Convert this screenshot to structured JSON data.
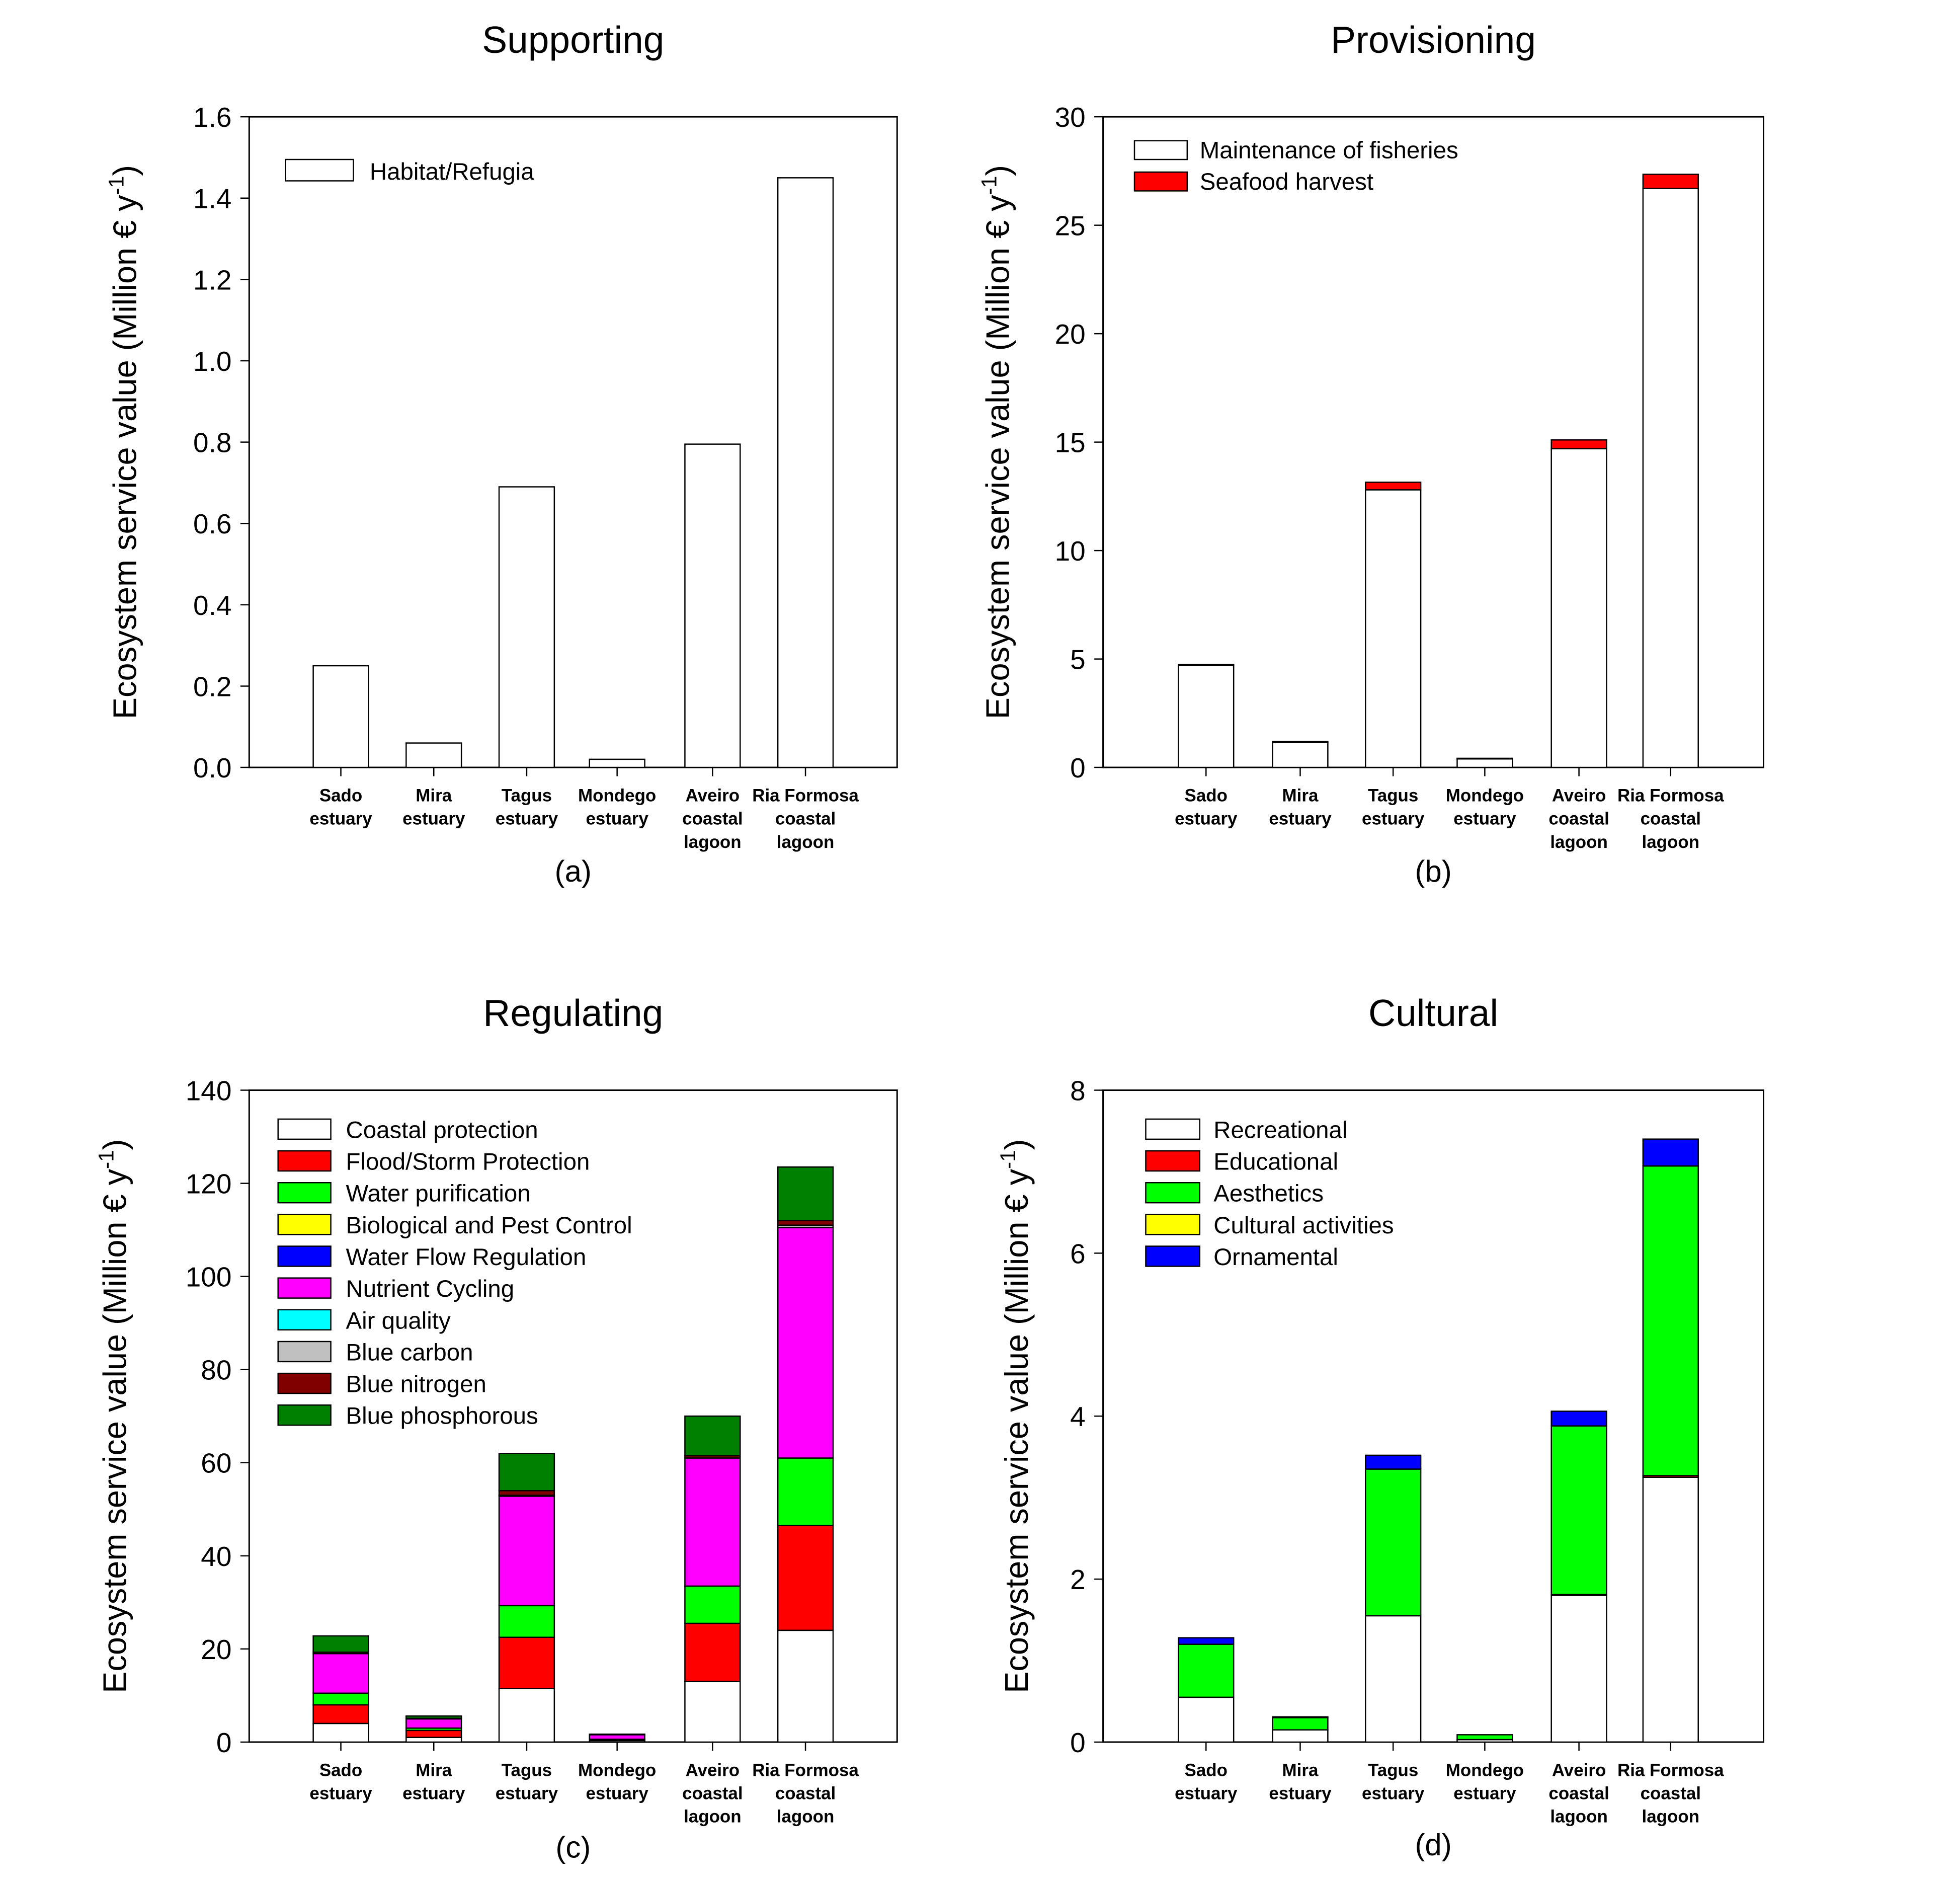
{
  "chart_data": [
    {
      "type": "bar",
      "stacked": true,
      "title": "Supporting",
      "panel_label": "(a)",
      "ylabel": {
        "prefix": "Ecosystem service value (Million € y",
        "sup": "-1",
        "suffix": ")"
      },
      "ylim": [
        0,
        1.6
      ],
      "yticks": [
        "0.0",
        "0.2",
        "0.4",
        "0.6",
        "0.8",
        "1.0",
        "1.2",
        "1.4",
        "1.6"
      ],
      "categories": [
        [
          "Sado",
          "estuary"
        ],
        [
          "Mira",
          "estuary"
        ],
        [
          "Tagus",
          "estuary"
        ],
        [
          "Mondego",
          "estuary"
        ],
        [
          "Aveiro",
          "coastal",
          "lagoon"
        ],
        [
          "Ria Formosa",
          "coastal",
          "lagoon"
        ]
      ],
      "legend_position": "top-left",
      "series": [
        {
          "name": "Habitat/Refugia",
          "color": "#ffffff",
          "values": [
            0.25,
            0.06,
            0.69,
            0.02,
            0.795,
            1.45
          ]
        }
      ]
    },
    {
      "type": "bar",
      "stacked": true,
      "title": "Provisioning",
      "panel_label": "(b)",
      "ylabel": {
        "prefix": "Ecosystem service value (Million € y",
        "sup": "-1",
        "suffix": ")"
      },
      "ylim": [
        0,
        30
      ],
      "yticks": [
        "0",
        "5",
        "10",
        "15",
        "20",
        "25",
        "30"
      ],
      "categories": [
        [
          "Sado",
          "estuary"
        ],
        [
          "Mira",
          "estuary"
        ],
        [
          "Tagus",
          "estuary"
        ],
        [
          "Mondego",
          "estuary"
        ],
        [
          "Aveiro",
          "coastal",
          "lagoon"
        ],
        [
          "Ria Formosa",
          "coastal",
          "lagoon"
        ]
      ],
      "legend_position": "top-left",
      "series": [
        {
          "name": "Maintenance of fisheries",
          "color": "#ffffff",
          "values": [
            4.7,
            1.15,
            12.8,
            0.4,
            14.7,
            26.7
          ]
        },
        {
          "name": "Seafood harvest",
          "color": "#ff0000",
          "values": [
            0.05,
            0.05,
            0.35,
            0.02,
            0.4,
            0.65
          ]
        }
      ]
    },
    {
      "type": "bar",
      "stacked": true,
      "title": "Regulating",
      "panel_label": "(c)",
      "ylabel": {
        "prefix": "Ecosystem service value (Million € y",
        "sup": "-1",
        "suffix": ")"
      },
      "ylim": [
        0,
        140
      ],
      "yticks": [
        "0",
        "20",
        "40",
        "60",
        "80",
        "100",
        "120",
        "140"
      ],
      "categories": [
        [
          "Sado",
          "estuary"
        ],
        [
          "Mira",
          "estuary"
        ],
        [
          "Tagus",
          "estuary"
        ],
        [
          "Mondego",
          "estuary"
        ],
        [
          "Aveiro",
          "coastal",
          "lagoon"
        ],
        [
          "Ria Formosa",
          "coastal",
          "lagoon"
        ]
      ],
      "legend_position": "top-left",
      "series": [
        {
          "name": "Coastal protection",
          "color": "#ffffff",
          "values": [
            4,
            1,
            11.5,
            0.3,
            13,
            24
          ]
        },
        {
          "name": "Flood/Storm Protection",
          "color": "#ff0000",
          "values": [
            4,
            1.5,
            11,
            0.2,
            12.5,
            22.5
          ]
        },
        {
          "name": "Water purification",
          "color": "#00ff00",
          "values": [
            2.5,
            0.5,
            6.8,
            0.1,
            8,
            14.5
          ]
        },
        {
          "name": "Biological and Pest Control",
          "color": "#ffff00",
          "values": [
            0,
            0,
            0,
            0,
            0,
            0
          ]
        },
        {
          "name": "Water Flow Regulation",
          "color": "#0000ff",
          "values": [
            0,
            0,
            0,
            0,
            0,
            0
          ]
        },
        {
          "name": "Nutrient Cycling",
          "color": "#ff00ff",
          "values": [
            8.5,
            2,
            23.5,
            1.0,
            27.5,
            49.5
          ]
        },
        {
          "name": "Air quality",
          "color": "#00ffff",
          "values": [
            0,
            0,
            0,
            0,
            0,
            0
          ]
        },
        {
          "name": "Blue carbon",
          "color": "#c0c0c0",
          "values": [
            0,
            0,
            0.2,
            0,
            0,
            0.5
          ]
        },
        {
          "name": "Blue nitrogen",
          "color": "#800000",
          "values": [
            0.3,
            0.1,
            1,
            0,
            0.5,
            1
          ]
        },
        {
          "name": "Blue phosphorous",
          "color": "#008000",
          "values": [
            3.5,
            0.5,
            8,
            0.1,
            8.5,
            11.5
          ]
        }
      ]
    },
    {
      "type": "bar",
      "stacked": true,
      "title": "Cultural",
      "panel_label": "(d)",
      "ylabel": {
        "prefix": "Ecosystem service value (Million € y",
        "sup": "-1",
        "suffix": ")"
      },
      "ylim": [
        0,
        8
      ],
      "yticks": [
        "0",
        "2",
        "4",
        "6",
        "8"
      ],
      "categories": [
        [
          "Sado",
          "estuary"
        ],
        [
          "Mira",
          "estuary"
        ],
        [
          "Tagus",
          "estuary"
        ],
        [
          "Mondego",
          "estuary"
        ],
        [
          "Aveiro",
          "coastal",
          "lagoon"
        ],
        [
          "Ria Formosa",
          "coastal",
          "lagoon"
        ]
      ],
      "legend_position": "top-left",
      "series": [
        {
          "name": "Recreational",
          "color": "#ffffff",
          "values": [
            0.55,
            0.15,
            1.55,
            0.03,
            1.8,
            3.25
          ]
        },
        {
          "name": "Educational",
          "color": "#ff0000",
          "values": [
            0,
            0,
            0,
            0,
            0.01,
            0.02
          ]
        },
        {
          "name": "Aesthetics",
          "color": "#00ff00",
          "values": [
            0.65,
            0.15,
            1.8,
            0.06,
            2.07,
            3.8
          ]
        },
        {
          "name": "Cultural activities",
          "color": "#ffff00",
          "values": [
            0,
            0,
            0,
            0,
            0,
            0
          ]
        },
        {
          "name": "Ornamental",
          "color": "#0000ff",
          "values": [
            0.08,
            0.01,
            0.17,
            0,
            0.18,
            0.33
          ]
        }
      ]
    }
  ]
}
